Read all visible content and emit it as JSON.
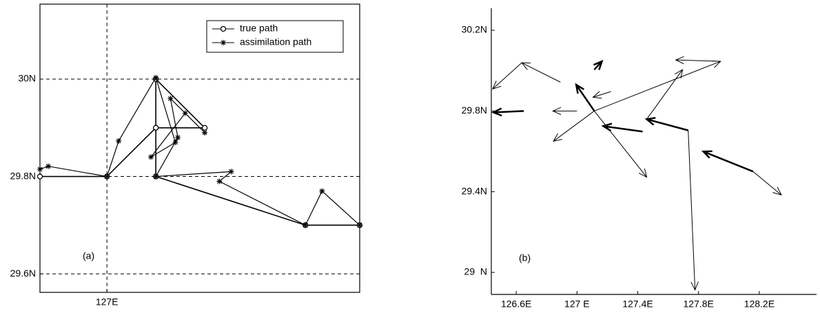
{
  "chart_data": [
    {
      "type": "line",
      "annotation": "(a)",
      "grid": true,
      "legend": "upper right",
      "xlim": [
        126.863,
        127.517
      ],
      "ylim": [
        29.562,
        30.154
      ],
      "xticks": [
        {
          "value": 127,
          "label": "127E"
        }
      ],
      "yticks": [
        {
          "value": 29.6,
          "label": "29.6N"
        },
        {
          "value": 29.8,
          "label": "29.8N"
        },
        {
          "value": 30,
          "label": "30N"
        }
      ],
      "series": [
        {
          "name": "true path",
          "marker": "o",
          "color": "#000000",
          "x": [
            126.863,
            127.0,
            127.1,
            127.1,
            127.2,
            127.1,
            127.1,
            127.406,
            127.517
          ],
          "y": [
            29.8,
            29.8,
            29.9,
            30.0,
            29.9,
            29.9,
            29.8,
            29.7,
            29.7
          ]
        },
        {
          "name": "assimilation path",
          "marker": "*",
          "color": "#000000",
          "x": [
            126.863,
            126.88,
            127.0,
            127.024,
            127.1,
            127.14,
            127.09,
            127.16,
            127.2,
            127.13,
            127.145,
            127.1,
            127.254,
            127.23,
            127.406,
            127.44,
            127.517
          ],
          "y": [
            29.815,
            29.821,
            29.8,
            29.873,
            30.003,
            29.87,
            29.84,
            29.93,
            29.89,
            29.96,
            29.88,
            29.8,
            29.81,
            29.79,
            29.7,
            29.77,
            29.7
          ]
        }
      ]
    },
    {
      "type": "quiver",
      "annotation": "(b)",
      "xlim": [
        126.436,
        128.577
      ],
      "ylim": [
        28.891,
        30.309
      ],
      "xticks": [
        {
          "value": 126.6,
          "label": "126.6E"
        },
        {
          "value": 127,
          "label": "127 E"
        },
        {
          "value": 127.4,
          "label": "127.4E"
        },
        {
          "value": 127.8,
          "label": "127.8E"
        },
        {
          "value": 128.2,
          "label": "128.2E"
        }
      ],
      "yticks": [
        {
          "value": 29,
          "label": "29  N"
        },
        {
          "value": 29.4,
          "label": "29.4N"
        },
        {
          "value": 29.8,
          "label": "29.8N"
        },
        {
          "value": 30.2,
          "label": "30.2N"
        }
      ],
      "color": "#000000",
      "arrows": [
        {
          "from": [
            126.891,
            29.943
          ],
          "to": [
            126.636,
            30.039
          ],
          "width": 1
        },
        {
          "from": [
            126.636,
            30.039
          ],
          "to": [
            126.445,
            29.909
          ],
          "width": 1
        },
        {
          "from": [
            126.65,
            29.8
          ],
          "to": [
            126.45,
            29.793
          ],
          "width": 2.5
        },
        {
          "from": [
            127.0,
            29.8
          ],
          "to": [
            126.841,
            29.8
          ],
          "width": 1
        },
        {
          "from": [
            127.114,
            29.8
          ],
          "to": [
            126.995,
            29.93
          ],
          "width": 2.5
        },
        {
          "from": [
            127.114,
            29.8
          ],
          "to": [
            127.945,
            30.046
          ],
          "width": 1
        },
        {
          "from": [
            127.945,
            30.046
          ],
          "to": [
            127.65,
            30.053
          ],
          "width": 1
        },
        {
          "from": [
            127.114,
            29.8
          ],
          "to": [
            127.459,
            29.472
          ],
          "width": 1
        },
        {
          "from": [
            127.114,
            29.8
          ],
          "to": [
            126.845,
            29.65
          ],
          "width": 1
        },
        {
          "from": [
            127.732,
            29.704
          ],
          "to": [
            127.459,
            29.759
          ],
          "width": 2.5
        },
        {
          "from": [
            127.432,
            29.698
          ],
          "to": [
            127.173,
            29.725
          ],
          "width": 2.5
        },
        {
          "from": [
            127.732,
            29.704
          ],
          "to": [
            127.777,
            28.913
          ],
          "width": 1
        },
        {
          "from": [
            128.159,
            29.5
          ],
          "to": [
            127.832,
            29.599
          ],
          "width": 2.5
        },
        {
          "from": [
            128.159,
            29.5
          ],
          "to": [
            128.345,
            29.384
          ],
          "width": 1
        },
        {
          "from": [
            127.459,
            29.759
          ],
          "to": [
            127.695,
            30.005
          ],
          "width": 1
        },
        {
          "from": [
            127.114,
            30.005
          ],
          "to": [
            127.164,
            30.046
          ],
          "width": 2.5
        },
        {
          "from": [
            127.223,
            29.896
          ],
          "to": [
            127.105,
            29.868
          ],
          "width": 1
        }
      ]
    }
  ]
}
